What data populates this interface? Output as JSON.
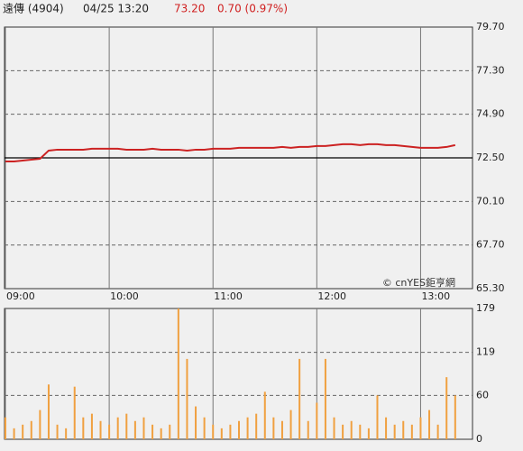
{
  "header": {
    "name": "遠傳 (4904)",
    "time": "04/25 13:20",
    "price": "73.20",
    "change": "0.70 (0.97%)"
  },
  "chart_data": [
    {
      "type": "line",
      "annotation": "© cnYES鉅亨網",
      "x": [
        "09:00",
        "09:05",
        "09:10",
        "09:15",
        "09:20",
        "09:25",
        "09:30",
        "09:35",
        "09:40",
        "09:45",
        "09:50",
        "09:55",
        "10:00",
        "10:05",
        "10:10",
        "10:15",
        "10:20",
        "10:25",
        "10:30",
        "10:35",
        "10:40",
        "10:45",
        "10:50",
        "10:55",
        "11:00",
        "11:05",
        "11:10",
        "11:15",
        "11:20",
        "11:25",
        "11:30",
        "11:35",
        "11:40",
        "11:45",
        "11:50",
        "11:55",
        "12:00",
        "12:05",
        "12:10",
        "12:15",
        "12:20",
        "12:25",
        "12:30",
        "12:35",
        "12:40",
        "12:45",
        "12:50",
        "12:55",
        "13:00",
        "13:05",
        "13:10",
        "13:15",
        "13:20"
      ],
      "series": [
        {
          "color": "#cc2222",
          "values": [
            72.3,
            72.3,
            72.35,
            72.4,
            72.45,
            72.9,
            72.95,
            72.95,
            72.95,
            72.95,
            73.0,
            73.0,
            73.0,
            73.0,
            72.95,
            72.95,
            72.95,
            73.0,
            72.95,
            72.95,
            72.95,
            72.9,
            72.95,
            72.95,
            73.0,
            73.0,
            73.0,
            73.05,
            73.05,
            73.05,
            73.05,
            73.05,
            73.1,
            73.05,
            73.1,
            73.1,
            73.15,
            73.15,
            73.2,
            73.25,
            73.25,
            73.2,
            73.25,
            73.25,
            73.2,
            73.2,
            73.15,
            73.1,
            73.05,
            73.05,
            73.05,
            73.1,
            73.2
          ]
        }
      ],
      "xlim": [
        "09:00",
        "13:30"
      ],
      "xticks": [
        "09:00",
        "10:00",
        "11:00",
        "12:00",
        "13:00"
      ],
      "ylim": [
        65.3,
        79.7
      ],
      "yticks": [
        {
          "value": 65.3,
          "label": "65.30"
        },
        {
          "value": 67.7,
          "label": "67.70"
        },
        {
          "value": 70.1,
          "label": "70.10"
        },
        {
          "value": 72.5,
          "label": "72.50"
        },
        {
          "value": 74.9,
          "label": "74.90"
        },
        {
          "value": 77.3,
          "label": "77.30"
        },
        {
          "value": 79.7,
          "label": "79.70"
        }
      ],
      "baseline": 72.5,
      "grid": true
    },
    {
      "type": "bar",
      "x": [
        "09:00",
        "09:05",
        "09:10",
        "09:15",
        "09:20",
        "09:25",
        "09:30",
        "09:35",
        "09:40",
        "09:45",
        "09:50",
        "09:55",
        "10:00",
        "10:05",
        "10:10",
        "10:15",
        "10:20",
        "10:25",
        "10:30",
        "10:35",
        "10:40",
        "10:45",
        "10:50",
        "10:55",
        "11:00",
        "11:05",
        "11:10",
        "11:15",
        "11:20",
        "11:25",
        "11:30",
        "11:35",
        "11:40",
        "11:45",
        "11:50",
        "11:55",
        "12:00",
        "12:05",
        "12:10",
        "12:15",
        "12:20",
        "12:25",
        "12:30",
        "12:35",
        "12:40",
        "12:45",
        "12:50",
        "12:55",
        "13:00",
        "13:05",
        "13:10",
        "13:15",
        "13:20"
      ],
      "series": [
        {
          "color": "#f0a040",
          "values": [
            30,
            15,
            20,
            25,
            40,
            75,
            20,
            15,
            72,
            30,
            35,
            25,
            20,
            30,
            35,
            25,
            30,
            20,
            15,
            20,
            179,
            110,
            45,
            30,
            20,
            15,
            20,
            25,
            30,
            35,
            65,
            30,
            25,
            40,
            110,
            25,
            50,
            110,
            30,
            20,
            25,
            20,
            15,
            60,
            30,
            20,
            25,
            20,
            30,
            40,
            20,
            85,
            60
          ]
        }
      ],
      "xlim": [
        "09:00",
        "13:30"
      ],
      "xticks": [
        "09:00",
        "10:00",
        "11:00",
        "12:00",
        "13:00"
      ],
      "ylim": [
        0,
        179
      ],
      "yticks": [
        0,
        60,
        119,
        179
      ],
      "grid": true
    }
  ]
}
